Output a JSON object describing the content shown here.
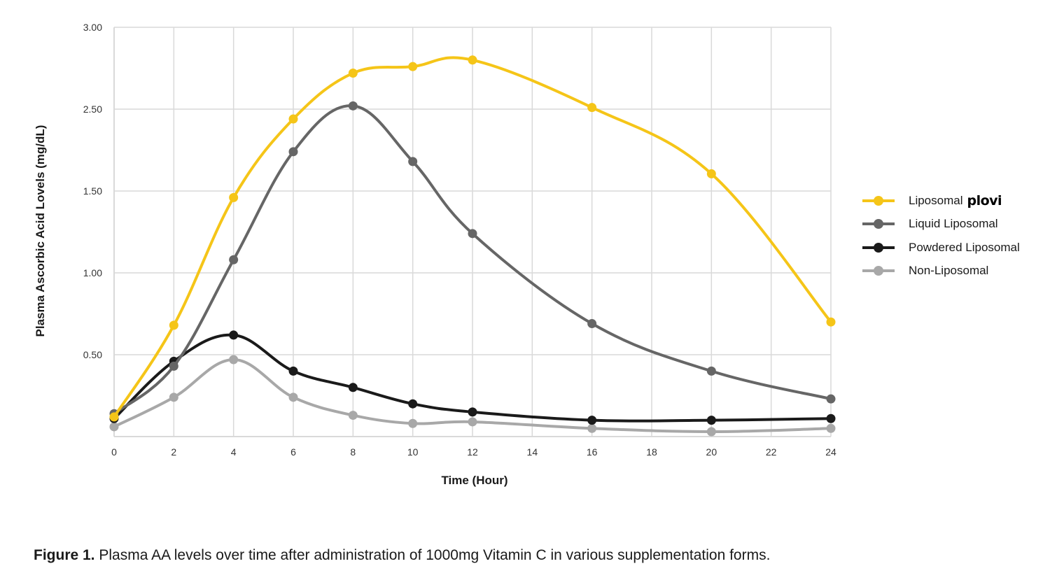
{
  "chart_data": {
    "type": "line",
    "title": "",
    "xlabel": "Time (Hour)",
    "ylabel": "Plasma Ascorbic Acid Lovels (mg/dL)",
    "x": [
      0,
      2,
      4,
      6,
      8,
      10,
      12,
      16,
      20,
      24
    ],
    "x_ticks": [
      "0",
      "2",
      "4",
      "6",
      "8",
      "10",
      "12",
      "14",
      "16",
      "18",
      "20",
      "22",
      "24"
    ],
    "x_tick_values": [
      0,
      2,
      4,
      6,
      8,
      10,
      12,
      14,
      16,
      18,
      20,
      22,
      24
    ],
    "xlim": [
      0,
      24
    ],
    "y_ticks": [
      "",
      "0.50",
      "1.00",
      "1.50",
      "2.50",
      "3.00"
    ],
    "y_tick_values": [
      0,
      0.5,
      1.0,
      1.5,
      2.5,
      3.0
    ],
    "ylim": [
      0,
      3.0
    ],
    "grid": true,
    "smooth": true,
    "legend_position": "right",
    "series": [
      {
        "name": "Liposomal",
        "brand": "plovi",
        "color": "#F5C518",
        "values": [
          0.12,
          0.68,
          1.46,
          2.38,
          2.72,
          2.76,
          2.8,
          2.51,
          1.71,
          0.7
        ]
      },
      {
        "name": "Liquid Liposomal",
        "color": "#666666",
        "values": [
          0.14,
          0.43,
          1.08,
          1.98,
          2.52,
          1.86,
          1.24,
          0.69,
          0.4,
          0.23
        ]
      },
      {
        "name": "Powdered Liposomal",
        "color": "#1a1a1a",
        "values": [
          0.11,
          0.46,
          0.62,
          0.4,
          0.3,
          0.2,
          0.15,
          0.1,
          0.1,
          0.11
        ]
      },
      {
        "name": "Non-Liposomal",
        "color": "#a8a8a8",
        "values": [
          0.06,
          0.24,
          0.47,
          0.24,
          0.13,
          0.08,
          0.09,
          0.05,
          0.03,
          0.05
        ]
      }
    ]
  },
  "caption": {
    "label": "Figure 1.",
    "text": " Plasma AA levels over time after administration of 1000mg Vitamin C in various supplementation forms."
  }
}
